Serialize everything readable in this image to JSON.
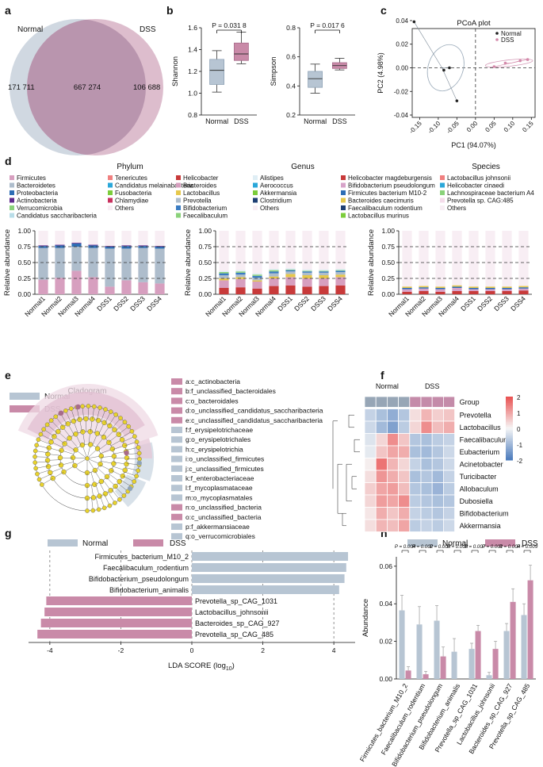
{
  "colors": {
    "normal": "#b7c5d3",
    "normal_dark": "#8fa3b7",
    "dss": "#c98aa8",
    "dss_dark": "#a86b8a",
    "venn_normal": "#d0d8e1",
    "venn_dss": "#d7b2c4",
    "venn_overlap": "#b995ae",
    "pale_pink": "#f7eaf2"
  },
  "panels": {
    "a": "a",
    "b": "b",
    "c": "c",
    "d": "d",
    "e": "e",
    "f": "f",
    "g": "g",
    "h": "h"
  },
  "chart_data": [
    {
      "id": "a",
      "type": "venn",
      "sets": [
        "Normal",
        "DSS"
      ],
      "only_normal": "171 711",
      "overlap": "667 274",
      "only_dss": "106 688"
    },
    {
      "id": "b_shannon",
      "type": "boxplot",
      "ylabel": "Shannon",
      "categories": [
        "Normal",
        "DSS"
      ],
      "ylim": [
        0.8,
        1.6
      ],
      "yticks": [
        "0.8",
        "1.0",
        "1.2",
        "1.4",
        "1.6"
      ],
      "pvalue": "P = 0.031 8",
      "boxes": [
        {
          "min": 1.01,
          "q1": 1.08,
          "median": 1.21,
          "q3": 1.31,
          "max": 1.39
        },
        {
          "min": 1.27,
          "q1": 1.3,
          "median": 1.36,
          "q3": 1.46,
          "max": 1.56
        }
      ]
    },
    {
      "id": "b_simpson",
      "type": "boxplot",
      "ylabel": "Simpson",
      "categories": [
        "Normal",
        "DSS"
      ],
      "ylim": [
        0.2,
        0.8
      ],
      "yticks": [
        "0.2",
        "0.4",
        "0.6",
        "0.8"
      ],
      "pvalue": "P = 0.017 6",
      "boxes": [
        {
          "min": 0.35,
          "q1": 0.39,
          "median": 0.45,
          "q3": 0.5,
          "max": 0.55
        },
        {
          "min": 0.51,
          "q1": 0.52,
          "median": 0.54,
          "q3": 0.56,
          "max": 0.59
        }
      ]
    },
    {
      "id": "c",
      "type": "scatter",
      "title": "PCoA plot",
      "xlabel": "PC1 (94.07%)",
      "ylabel": "PC2 (4.98%)",
      "xlim": [
        -0.17,
        0.16
      ],
      "ylim": [
        -0.042,
        0.044
      ],
      "xticks": [
        "-0.15",
        "-0.10",
        "-0.05",
        "0.00",
        "0.05",
        "0.10",
        "0.15"
      ],
      "yticks": [
        "0.04",
        "0.02",
        "0.00",
        "-0.02",
        "-0.04"
      ],
      "series": [
        {
          "name": "Normal",
          "points": [
            [
              -0.165,
              0.039
            ],
            [
              -0.07,
              0.0
            ],
            [
              -0.05,
              -0.028
            ],
            [
              -0.085,
              -0.002
            ]
          ]
        },
        {
          "name": "DSS",
          "points": [
            [
              0.14,
              0.007
            ],
            [
              0.05,
              0.001
            ],
            [
              0.08,
              0.004
            ],
            [
              0.12,
              0.006
            ]
          ]
        }
      ]
    },
    {
      "id": "d_phylum",
      "type": "bar",
      "title": "Phylum",
      "ylabel": "Relative abundance",
      "categories": [
        "Normal1",
        "Normal2",
        "Normal3",
        "Normal4",
        "DSS1",
        "DSS2",
        "DSS3",
        "DSS4"
      ],
      "yticks": [
        "0.00",
        "0.25",
        "0.50",
        "0.75",
        "1.00"
      ],
      "legend": [
        "Firmicutes",
        "Bacteroidetes",
        "Proteobacteria",
        "Actinobacteria",
        "Verrucomicrobia",
        "Candidatus saccharibacteria",
        "Tenericutes",
        "Candidatus melainabacteria",
        "Fusobacteria",
        "Chlamydiae",
        "Others"
      ],
      "legend_colors": [
        "#d79fbf",
        "#aebdcc",
        "#2e6eb5",
        "#5f2a8c",
        "#8ad27a",
        "#b9dde8",
        "#f08080",
        "#2aa7d9",
        "#7ccd3b",
        "#c8305e",
        "#f8eef4"
      ],
      "stacks": [
        [
          0.23,
          0.5,
          0.03,
          0.01
        ],
        [
          0.26,
          0.47,
          0.04,
          0.01
        ],
        [
          0.37,
          0.38,
          0.05,
          0.01
        ],
        [
          0.27,
          0.46,
          0.04,
          0.01
        ],
        [
          0.12,
          0.6,
          0.03,
          0.01
        ],
        [
          0.22,
          0.5,
          0.04,
          0.01
        ],
        [
          0.19,
          0.54,
          0.03,
          0.01
        ],
        [
          0.17,
          0.55,
          0.03,
          0.01
        ]
      ]
    },
    {
      "id": "d_genus",
      "type": "bar",
      "title": "Genus",
      "ylabel": "Relative abundance",
      "categories": [
        "Normal1",
        "Normal2",
        "Normal3",
        "Normal4",
        "DSS1",
        "DSS2",
        "DSS3",
        "DSS4"
      ],
      "yticks": [
        "0.00",
        "0.25",
        "0.50",
        "0.75",
        "1.00"
      ],
      "legend": [
        "Helicobacter",
        "Bacteroides",
        "Lactobacillus",
        "Prevotella",
        "Bifidobacterium",
        "Faecalibaculum",
        "Alistipes",
        "Aerococcus",
        "Akkermansia",
        "Clostridium",
        "Others"
      ],
      "legend_colors": [
        "#c83a3a",
        "#d79fbf",
        "#e6c84c",
        "#aebdcc",
        "#3a7cc2",
        "#8ad27a",
        "#dfeef5",
        "#2aa7d9",
        "#7ccd3b",
        "#1e3f73",
        "#f8eef4"
      ],
      "stacks": [
        [
          0.1,
          0.12,
          0.03,
          0.05,
          0.03,
          0.02,
          0.02
        ],
        [
          0.11,
          0.13,
          0.03,
          0.04,
          0.03,
          0.02,
          0.02
        ],
        [
          0.09,
          0.11,
          0.02,
          0.04,
          0.03,
          0.02,
          0.02
        ],
        [
          0.13,
          0.12,
          0.03,
          0.05,
          0.03,
          0.02,
          0.02
        ],
        [
          0.14,
          0.13,
          0.05,
          0.04,
          0.02,
          0.01,
          0.02
        ],
        [
          0.12,
          0.13,
          0.05,
          0.04,
          0.02,
          0.01,
          0.02
        ],
        [
          0.13,
          0.12,
          0.05,
          0.04,
          0.02,
          0.01,
          0.02
        ],
        [
          0.14,
          0.13,
          0.04,
          0.04,
          0.02,
          0.01,
          0.02
        ]
      ]
    },
    {
      "id": "d_species",
      "type": "bar",
      "title": "Species",
      "ylabel": "Relative abundance",
      "categories": [
        "Normal1",
        "Normal2",
        "Normal3",
        "Normal4",
        "DSS1",
        "DSS2",
        "DSS3",
        "DSS4"
      ],
      "yticks": [
        "0.00",
        "0.25",
        "0.50",
        "0.75",
        "1.00"
      ],
      "legend": [
        "Helicobacter magdeburgensis",
        "Bifidobacterium pseudolongum",
        "Firmicutes bacterium M10-2",
        "Bacteroides caecimuris",
        "Faecalibaculum rodentium",
        "Lactobacillus murinus",
        "Lactobacillus johnsonii",
        "Helicobacter cinaedi",
        "Lachnospiraceae bacterium A4",
        "Prevotella sp. CAG:485",
        "Others"
      ],
      "legend_colors": [
        "#c83a3a",
        "#d7a3c9",
        "#2e6eb5",
        "#e6c84c",
        "#1e3f73",
        "#7ccd3b",
        "#f08080",
        "#2aa7d9",
        "#8ad27a",
        "#f4dcea",
        "#f8eef4"
      ],
      "stacks": [
        [
          0.04,
          0.04,
          0.02,
          0.02
        ],
        [
          0.05,
          0.04,
          0.02,
          0.02
        ],
        [
          0.04,
          0.04,
          0.02,
          0.02
        ],
        [
          0.05,
          0.05,
          0.02,
          0.02
        ],
        [
          0.05,
          0.03,
          0.02,
          0.02
        ],
        [
          0.05,
          0.03,
          0.02,
          0.02
        ],
        [
          0.05,
          0.03,
          0.02,
          0.02
        ],
        [
          0.06,
          0.03,
          0.02,
          0.02
        ]
      ]
    },
    {
      "id": "e",
      "type": "cladogram",
      "title": "Cladogram",
      "legend": [
        "Normal",
        "DSS"
      ],
      "labels": [
        {
          "text": "a:c_actinobacteria",
          "group": "DSS"
        },
        {
          "text": "b:f_unclassified_bacteroidales",
          "group": "DSS"
        },
        {
          "text": "c:o_bacteroidales",
          "group": "DSS"
        },
        {
          "text": "d:o_unclassified_candidatus_saccharibacteria",
          "group": "DSS"
        },
        {
          "text": "e:c_unclassified_candidatus_saccharibacteria",
          "group": "DSS"
        },
        {
          "text": "f:f_erysipelotrichaceae",
          "group": "Normal"
        },
        {
          "text": "g:o_erysipelotrichales",
          "group": "Normal"
        },
        {
          "text": "h:c_erysipelotrichia",
          "group": "Normal"
        },
        {
          "text": "i:o_unclassified_firmicutes",
          "group": "Normal"
        },
        {
          "text": "j:c_unclassified_firmicutes",
          "group": "Normal"
        },
        {
          "text": "k:f_enterobacteriaceae",
          "group": "Normal"
        },
        {
          "text": "l:f_mycoplasmataceae",
          "group": "Normal"
        },
        {
          "text": "m:o_mycoplasmatales",
          "group": "Normal"
        },
        {
          "text": "n:o_unclassified_bacteria",
          "group": "DSS"
        },
        {
          "text": "o:c_unclassified_bacteria",
          "group": "DSS"
        },
        {
          "text": "p:f_akkermansiaceae",
          "group": "Normal"
        },
        {
          "text": "q:o_verrucomicrobiales",
          "group": "Normal"
        }
      ]
    },
    {
      "id": "f",
      "type": "heatmap",
      "col_groups": [
        "Normal",
        "DSS"
      ],
      "group_label": "Group",
      "scale": [
        "2",
        "1",
        "0",
        "-1",
        "-2"
      ],
      "rows": [
        "Prevotella",
        "Lactobacillus",
        "Faecalibaculum",
        "Eubacterium",
        "Acinetobacter",
        "Turicibacter",
        "Allobaculum",
        "Dubosiella",
        "Bifidobacterium",
        "Akkermansia"
      ],
      "values": [
        [
          -0.6,
          -0.9,
          -1.2,
          -0.8,
          0.3,
          0.8,
          0.5,
          0.6
        ],
        [
          -0.5,
          -1.0,
          -1.4,
          -0.7,
          0.4,
          1.3,
          0.7,
          0.9
        ],
        [
          -0.3,
          0.4,
          1.3,
          0.6,
          -0.8,
          -0.9,
          -0.7,
          -0.6
        ],
        [
          -0.2,
          0.6,
          1.0,
          0.9,
          -0.9,
          -1.0,
          -0.8,
          -0.5
        ],
        [
          0.1,
          1.6,
          0.8,
          0.4,
          -0.6,
          -0.9,
          -0.8,
          -0.5
        ],
        [
          0.3,
          1.2,
          0.9,
          0.6,
          -0.9,
          -0.8,
          -1.0,
          -0.6
        ],
        [
          0.5,
          1.0,
          1.1,
          0.7,
          -0.8,
          -0.9,
          -1.1,
          -0.7
        ],
        [
          0.4,
          1.1,
          1.0,
          1.3,
          -0.7,
          -0.8,
          -0.9,
          -0.8
        ],
        [
          0.2,
          0.9,
          0.6,
          0.9,
          -0.6,
          -0.7,
          -0.8,
          -0.6
        ],
        [
          0.3,
          0.8,
          0.7,
          1.0,
          -0.7,
          -0.6,
          -0.7,
          -0.5
        ]
      ]
    },
    {
      "id": "g",
      "type": "bar",
      "orientation": "horizontal",
      "xlabel": "LDA SCORE (log",
      "xlabel_sub": "10",
      "xlabel_end": ")",
      "xlim": [
        -4.6,
        4.6
      ],
      "xticks": [
        "-4",
        "-2",
        "0",
        "2",
        "4"
      ],
      "legend": [
        "Normal",
        "DSS"
      ],
      "bars": [
        {
          "name": "Firmicutes_bacterium_M10_2",
          "value": 4.4,
          "group": "Normal"
        },
        {
          "name": "Faecalibaculum_rodentium",
          "value": 4.35,
          "group": "Normal"
        },
        {
          "name": "Bifidobacterium_pseudolongum",
          "value": 4.3,
          "group": "Normal"
        },
        {
          "name": "Bifidobacterium_animalis",
          "value": 4.15,
          "group": "Normal"
        },
        {
          "name": "Prevotella_sp_CAG_1031",
          "value": -4.1,
          "group": "DSS"
        },
        {
          "name": "Lactobacillus_johnsonii",
          "value": -4.15,
          "group": "DSS"
        },
        {
          "name": "Bacteroides_sp_CAG_927",
          "value": -4.25,
          "group": "DSS"
        },
        {
          "name": "Prevotella_sp_CAG_485",
          "value": -4.35,
          "group": "DSS"
        }
      ]
    },
    {
      "id": "h",
      "type": "bar",
      "ylabel": "Abundance",
      "ylim": [
        0,
        0.065
      ],
      "yticks": [
        "0.00",
        "0.02",
        "0.04",
        "0.06"
      ],
      "legend": [
        "Normal",
        "DSS"
      ],
      "categories": [
        "Firmicutes_bacterium_M10_2",
        "Faecalibaculum_rodentium",
        "Bifidobacterium_pseudolongum",
        "Bifidobacterium_animalis",
        "Prevotella_sp_CAG_1031",
        "Lactobacillus_johnsonii",
        "Bacteroides_sp_CAG_927",
        "Prevotella_sp_CAG_485"
      ],
      "pvalues": [
        "P = 0.004",
        "P = 0.002",
        "P = 0.005",
        "P = 0.008",
        "P = 0.007",
        "P = 0.001",
        "P = 0.004",
        "P = 0.009"
      ],
      "series": [
        {
          "name": "Normal",
          "values": [
            0.0365,
            0.029,
            0.031,
            0.0145,
            0.016,
            0.002,
            0.0255,
            0.034
          ],
          "err": [
            0.008,
            0.0095,
            0.008,
            0.007,
            0.003,
            0.0015,
            0.004,
            0.006
          ]
        },
        {
          "name": "DSS",
          "values": [
            0.0045,
            0.0025,
            0.012,
            0.0,
            0.0255,
            0.016,
            0.041,
            0.0525
          ],
          "err": [
            0.002,
            0.0015,
            0.005,
            0.0,
            0.003,
            0.004,
            0.007,
            0.008
          ]
        }
      ]
    }
  ]
}
